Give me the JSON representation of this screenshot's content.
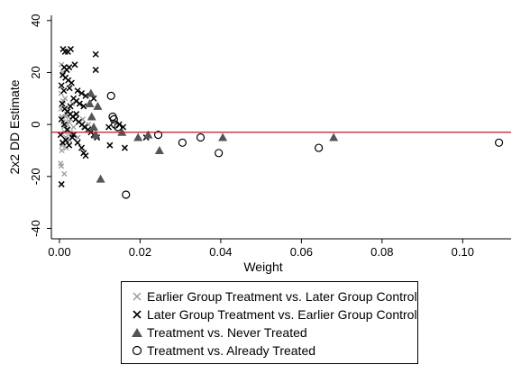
{
  "chart_data": {
    "type": "scatter",
    "title": "",
    "xlabel": "Weight",
    "ylabel": "2x2 DD Estimate",
    "xlim": [
      -0.002,
      0.112
    ],
    "ylim": [
      -44,
      42
    ],
    "x_ticks": [
      "0.00",
      "0.02",
      "0.04",
      "0.06",
      "0.08",
      "0.10"
    ],
    "y_ticks": [
      "-40",
      "-20",
      "0",
      "20",
      "40"
    ],
    "grid": false,
    "legend_position": "bottom",
    "reference_line": {
      "y": -3,
      "color": "#c8102e"
    },
    "series": [
      {
        "name": "Earlier Group Treatment vs. Later Group Control",
        "marker": "x-small",
        "color": "#9a9a9a",
        "points": [
          [
            0.0005,
            23
          ],
          [
            0.0008,
            20
          ],
          [
            0.0003,
            -15
          ],
          [
            0.0005,
            -16
          ],
          [
            0.0012,
            -19
          ],
          [
            0.0004,
            6
          ],
          [
            0.0006,
            3
          ],
          [
            0.0009,
            1
          ],
          [
            0.0011,
            -1
          ],
          [
            0.0013,
            -3
          ],
          [
            0.0016,
            -5
          ],
          [
            0.0018,
            4
          ],
          [
            0.002,
            0
          ],
          [
            0.0022,
            -2
          ],
          [
            0.0025,
            -6
          ],
          [
            0.0028,
            2
          ],
          [
            0.003,
            -4
          ],
          [
            0.0032,
            8
          ],
          [
            0.0035,
            -1
          ],
          [
            0.0007,
            -8
          ],
          [
            0.0009,
            9
          ],
          [
            0.0014,
            10
          ],
          [
            0.0017,
            -9
          ],
          [
            0.0021,
            5
          ],
          [
            0.0004,
            12
          ],
          [
            0.0006,
            -10
          ],
          [
            0.0015,
            3
          ],
          [
            0.0019,
            -7
          ],
          [
            0.0024,
            1
          ],
          [
            0.0027,
            -3
          ],
          [
            0.0046,
            -5
          ],
          [
            0.0058,
            2
          ],
          [
            0.0072,
            0
          ],
          [
            0.006,
            -1
          ]
        ]
      },
      {
        "name": "Later Group Treatment vs. Earlier Group Control",
        "marker": "x",
        "color": "#000000",
        "points": [
          [
            0.0009,
            29
          ],
          [
            0.0014,
            28
          ],
          [
            0.0021,
            28
          ],
          [
            0.0028,
            29
          ],
          [
            0.0012,
            22
          ],
          [
            0.0018,
            21
          ],
          [
            0.0024,
            22
          ],
          [
            0.0038,
            23
          ],
          [
            0.0008,
            19
          ],
          [
            0.0015,
            18
          ],
          [
            0.0022,
            17
          ],
          [
            0.003,
            16
          ],
          [
            0.0005,
            15
          ],
          [
            0.0011,
            13
          ],
          [
            0.0025,
            14
          ],
          [
            0.0045,
            13
          ],
          [
            0.0055,
            12
          ],
          [
            0.0065,
            11
          ],
          [
            0.0035,
            10
          ],
          [
            0.0042,
            9
          ],
          [
            0.005,
            8
          ],
          [
            0.006,
            7
          ],
          [
            0.0007,
            8
          ],
          [
            0.0013,
            6
          ],
          [
            0.002,
            5
          ],
          [
            0.0027,
            4
          ],
          [
            0.0033,
            3
          ],
          [
            0.004,
            2
          ],
          [
            0.0048,
            1
          ],
          [
            0.0056,
            0
          ],
          [
            0.0063,
            -1
          ],
          [
            0.0071,
            -2
          ],
          [
            0.0078,
            -3
          ],
          [
            0.0085,
            -4
          ],
          [
            0.0093,
            -5
          ],
          [
            0.0008,
            -7
          ],
          [
            0.0016,
            -6
          ],
          [
            0.0024,
            -8
          ],
          [
            0.0032,
            -5
          ],
          [
            0.0045,
            -7
          ],
          [
            0.0055,
            -9
          ],
          [
            0.006,
            -11
          ],
          [
            0.0065,
            -12
          ],
          [
            0.0005,
            -23
          ],
          [
            0.009,
            27
          ],
          [
            0.009,
            21
          ],
          [
            0.0085,
            10
          ],
          [
            0.0122,
            -1
          ],
          [
            0.0125,
            -8
          ],
          [
            0.0148,
            0
          ],
          [
            0.0158,
            -1
          ],
          [
            0.0162,
            -9
          ],
          [
            0.0215,
            -5
          ],
          [
            0.0005,
            2
          ],
          [
            0.0012,
            0
          ],
          [
            0.0019,
            -2
          ],
          [
            0.0027,
            7
          ],
          [
            0.0035,
            -4
          ],
          [
            0.0042,
            4
          ],
          [
            0.0003,
            -4
          ]
        ]
      },
      {
        "name": "Treatment vs. Never Treated",
        "marker": "triangle",
        "color": "#555555",
        "points": [
          [
            0.0075,
            8
          ],
          [
            0.008,
            3
          ],
          [
            0.0085,
            -1
          ],
          [
            0.0078,
            12
          ],
          [
            0.009,
            -4
          ],
          [
            0.0095,
            7
          ],
          [
            0.0102,
            -21
          ],
          [
            0.0155,
            -3
          ],
          [
            0.0195,
            -5
          ],
          [
            0.022,
            -4
          ],
          [
            0.0248,
            -10
          ],
          [
            0.0405,
            -5
          ],
          [
            0.068,
            -5
          ]
        ]
      },
      {
        "name": "Treatment vs. Already Treated",
        "marker": "circle",
        "color": "#000000",
        "points": [
          [
            0.0128,
            11
          ],
          [
            0.0132,
            3
          ],
          [
            0.0135,
            2
          ],
          [
            0.0138,
            0
          ],
          [
            0.0145,
            -1
          ],
          [
            0.0165,
            -27
          ],
          [
            0.0245,
            -4
          ],
          [
            0.0305,
            -7
          ],
          [
            0.035,
            -5
          ],
          [
            0.0395,
            -11
          ],
          [
            0.0643,
            -9
          ],
          [
            0.109,
            -7
          ]
        ]
      }
    ]
  }
}
